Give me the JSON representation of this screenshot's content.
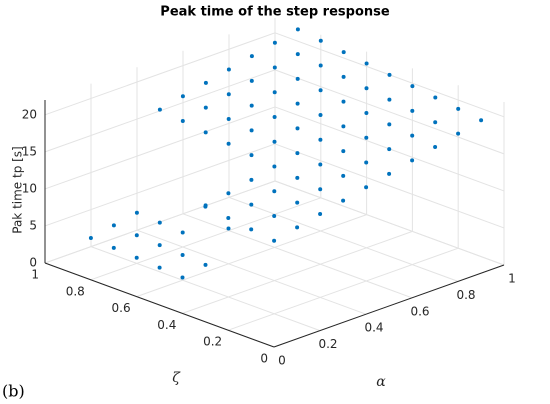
{
  "chart_data": {
    "type": "scatter3d",
    "title": "Peak time of the step response",
    "xlabel": "α",
    "ylabel": "ζ",
    "zlabel": "Pak time tp [s]",
    "annotations": [
      "(b)"
    ],
    "color": "#0072BD",
    "grid": true,
    "xlim": [
      0,
      1
    ],
    "ylim": [
      0,
      1
    ],
    "zlim": [
      0,
      22
    ],
    "xticks": [
      0,
      0.2,
      0.4,
      0.6,
      0.8,
      1
    ],
    "yticks": [
      0,
      0.2,
      0.4,
      0.6,
      0.8,
      1
    ],
    "zticks": [
      0,
      5,
      10,
      15,
      20
    ],
    "x": [
      0.1,
      0.2,
      0.3,
      0.4,
      0.5,
      0.6,
      0.7,
      0.8,
      0.9,
      1.0,
      0.1,
      0.2,
      0.3,
      0.4,
      0.5,
      0.6,
      0.7,
      0.8,
      0.9,
      1.0,
      0.1,
      0.2,
      0.3,
      0.4,
      0.5,
      0.6,
      0.7,
      0.8,
      0.9,
      1.0,
      0.1,
      0.2,
      0.3,
      0.4,
      0.5,
      0.6,
      0.7,
      0.8,
      0.9,
      1.0,
      0.1,
      0.2,
      0.3,
      0.4,
      0.5,
      0.6,
      0.7,
      0.8,
      0.9,
      1.0,
      0.1,
      0.2,
      0.3,
      0.4,
      0.5,
      0.6,
      0.7,
      0.8,
      0.9,
      1.0,
      0.1,
      0.2,
      0.3,
      0.4,
      0.5,
      0.6,
      0.7,
      0.8,
      0.9,
      1.0,
      0.1,
      0.2,
      0.3,
      0.4,
      0.5,
      0.6,
      0.7,
      0.8,
      0.9,
      1.0,
      0.1,
      0.2,
      0.3,
      0.4,
      0.5,
      0.6,
      0.7,
      0.8,
      0.9,
      1.0
    ],
    "y": [
      0.1,
      0.1,
      0.1,
      0.1,
      0.1,
      0.1,
      0.1,
      0.1,
      0.1,
      0.1,
      0.2,
      0.2,
      0.2,
      0.2,
      0.2,
      0.2,
      0.2,
      0.2,
      0.2,
      0.2,
      0.3,
      0.3,
      0.3,
      0.3,
      0.3,
      0.3,
      0.3,
      0.3,
      0.3,
      0.3,
      0.4,
      0.4,
      0.4,
      0.4,
      0.4,
      0.4,
      0.4,
      0.4,
      0.4,
      0.4,
      0.5,
      0.5,
      0.5,
      0.5,
      0.5,
      0.5,
      0.5,
      0.5,
      0.5,
      0.5,
      0.6,
      0.6,
      0.6,
      0.6,
      0.6,
      0.6,
      0.6,
      0.6,
      0.6,
      0.6,
      0.7,
      0.7,
      0.7,
      0.7,
      0.7,
      0.7,
      0.7,
      0.7,
      0.7,
      0.7,
      0.8,
      0.8,
      0.8,
      0.8,
      0.8,
      0.8,
      0.8,
      0.8,
      0.8,
      0.8,
      0.9,
      0.9,
      0.9,
      0.9,
      0.9,
      0.9,
      0.9,
      0.9,
      0.9,
      0.9
    ],
    "z": [
      12.1,
      12.8,
      13.5,
      14.2,
      14.9,
      15.6,
      16.3,
      17.0,
      17.7,
      18.4,
      12.5,
      13.2,
      13.9,
      14.6,
      15.3,
      16.0,
      16.7,
      17.4,
      18.1,
      18.8,
      12.9,
      13.6,
      14.3,
      15.0,
      15.7,
      16.4,
      17.1,
      17.8,
      18.5,
      19.2,
      13.3,
      14.0,
      14.7,
      15.4,
      16.1,
      16.8,
      17.5,
      18.2,
      18.9,
      19.6,
      2.6,
      3.2,
      7.0,
      15.8,
      16.5,
      17.2,
      17.9,
      18.6,
      19.3,
      20.0,
      2.8,
      3.4,
      9.0,
      16.2,
      16.9,
      17.6,
      18.3,
      19.0,
      19.7,
      20.4,
      3.0,
      3.6,
      4.2,
      16.6,
      17.3,
      18.0,
      18.7,
      19.4,
      20.1,
      20.8,
      3.2,
      3.8,
      4.4,
      17.0,
      17.7,
      18.4,
      19.1,
      19.8,
      20.5,
      21.2,
      3.4,
      4.0,
      4.6,
      17.4,
      18.1,
      18.8,
      19.5,
      20.2,
      20.9,
      21.6
    ]
  }
}
